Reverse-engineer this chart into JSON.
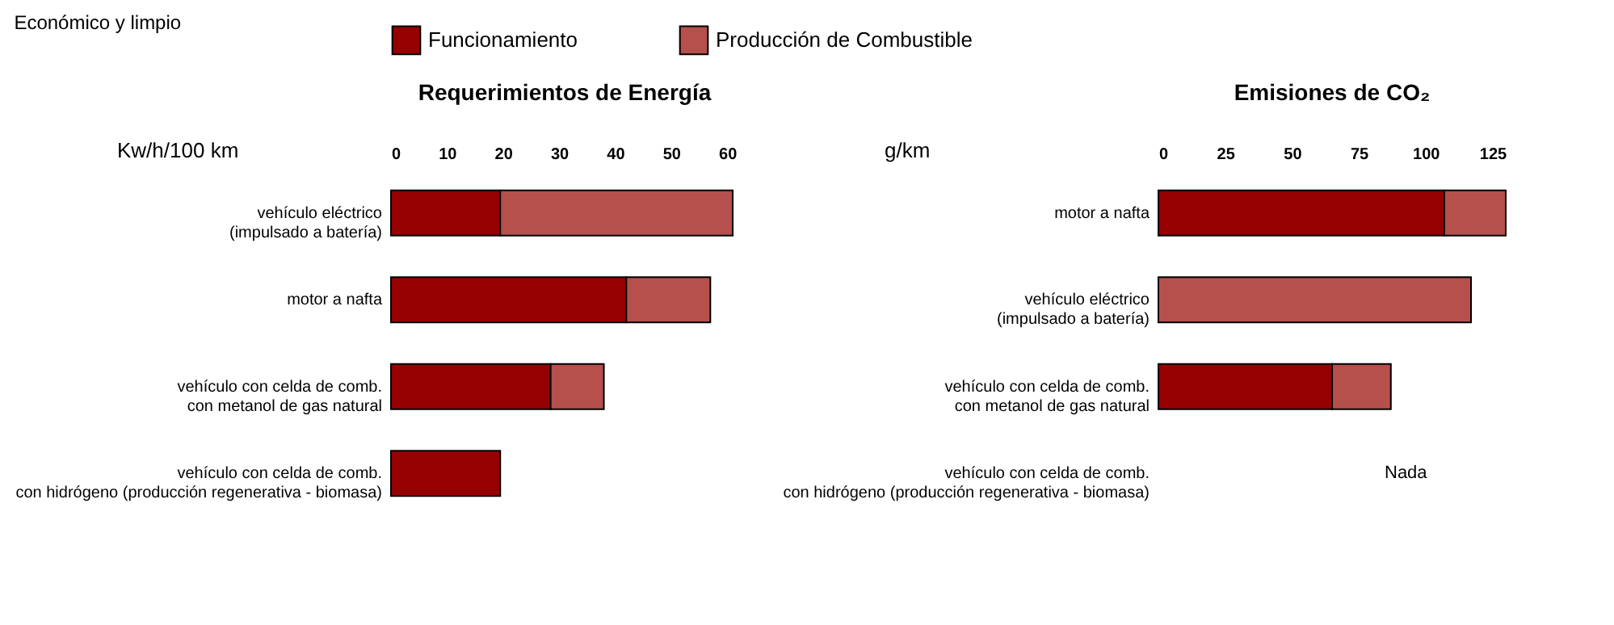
{
  "chart_data": [
    {
      "type": "bar",
      "orientation": "horizontal",
      "stacked": true,
      "title": "Requerimientos de Energía",
      "xlabel": "Kw/h/100 km",
      "annotations": [
        "Económico y limpio"
      ],
      "categories": [
        "vehículo eléctrico\n(impulsado a batería)",
        "motor a nafta",
        "vehículo con celda de comb.\ncon metanol de gas natural",
        "vehículo con celda de comb.\ncon hidrógeno (producción regenerativa - biomasa)"
      ],
      "series": [
        {
          "name": "Funcionamiento",
          "color": "#960000",
          "values": [
            19.5,
            42,
            28.5,
            19.5
          ]
        },
        {
          "name": "Producción de Combustible",
          "color": "#b5504c",
          "values": [
            41.5,
            15,
            9.5,
            0
          ]
        }
      ],
      "xlim": [
        0,
        62
      ],
      "xticks": [
        0,
        10,
        20,
        30,
        40,
        50,
        60
      ],
      "grid": false,
      "legend": "top"
    },
    {
      "type": "bar",
      "orientation": "horizontal",
      "stacked": true,
      "title": "Emisiones de CO₂",
      "xlabel": "g/km",
      "annotations": [
        "Nada"
      ],
      "categories": [
        "motor a nafta",
        "vehículo eléctrico\n(impulsado a batería)",
        "vehículo con celda de comb.\ncon metanol de gas natural",
        "vehículo con celda de comb.\ncon hidrógeno (producción regenerativa - biomasa)"
      ],
      "series": [
        {
          "color": "#960000",
          "values": [
            107,
            0,
            65,
            0
          ]
        },
        {
          "color": "#b5504c",
          "values": [
            23,
            117,
            22,
            0
          ]
        }
      ],
      "xlim": [
        0,
        130
      ],
      "xticks": [
        0,
        25,
        50,
        75,
        100,
        125
      ],
      "grid": false,
      "legend": false
    }
  ]
}
